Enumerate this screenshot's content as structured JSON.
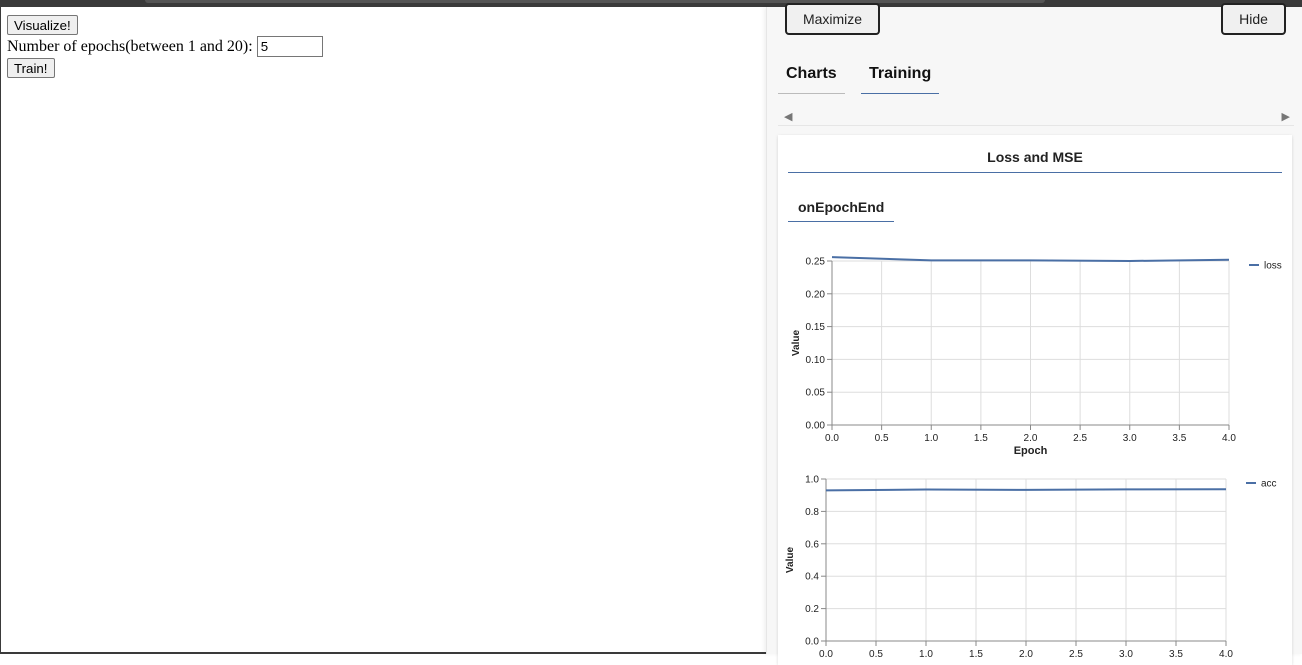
{
  "page": {
    "visualize_label": "Visualize!",
    "epochs_label": "Number of epochs(between 1 and 20):",
    "epochs_value": "5",
    "train_label": "Train!"
  },
  "visor": {
    "maximize_label": "Maximize",
    "hide_label": "Hide",
    "tabs": [
      {
        "label": "Charts"
      },
      {
        "label": "Training"
      }
    ],
    "active_tab": "Training",
    "card_title": "Loss and MSE",
    "subtab": "onEpochEnd",
    "accent": "#4a6fa5"
  },
  "chart_data": [
    {
      "type": "line",
      "xlabel": "Epoch",
      "ylabel": "Value",
      "legend_position": "right",
      "grid": true,
      "xlim": [
        0,
        4
      ],
      "ylim": [
        0,
        0.25
      ],
      "xticks": [
        "0.0",
        "0.5",
        "1.0",
        "1.5",
        "2.0",
        "2.5",
        "3.0",
        "3.5",
        "4.0"
      ],
      "yticks": [
        "0.00",
        "0.05",
        "0.10",
        "0.15",
        "0.20",
        "0.25"
      ],
      "series": [
        {
          "name": "loss",
          "x": [
            0,
            1,
            2,
            3,
            4
          ],
          "y": [
            0.256,
            0.251,
            0.251,
            0.25,
            0.252
          ]
        }
      ]
    },
    {
      "type": "line",
      "xlabel": "",
      "ylabel": "Value",
      "legend_position": "right",
      "grid": true,
      "xlim": [
        0,
        4
      ],
      "ylim": [
        0,
        1.0
      ],
      "xticks": [
        "0.0",
        "0.5",
        "1.0",
        "1.5",
        "2.0",
        "2.5",
        "3.0",
        "3.5",
        "4.0"
      ],
      "yticks": [
        "0.0",
        "0.2",
        "0.4",
        "0.6",
        "0.8",
        "1.0"
      ],
      "series": [
        {
          "name": "acc",
          "x": [
            0,
            1,
            2,
            3,
            4
          ],
          "y": [
            0.93,
            0.935,
            0.933,
            0.936,
            0.937
          ]
        }
      ]
    }
  ]
}
